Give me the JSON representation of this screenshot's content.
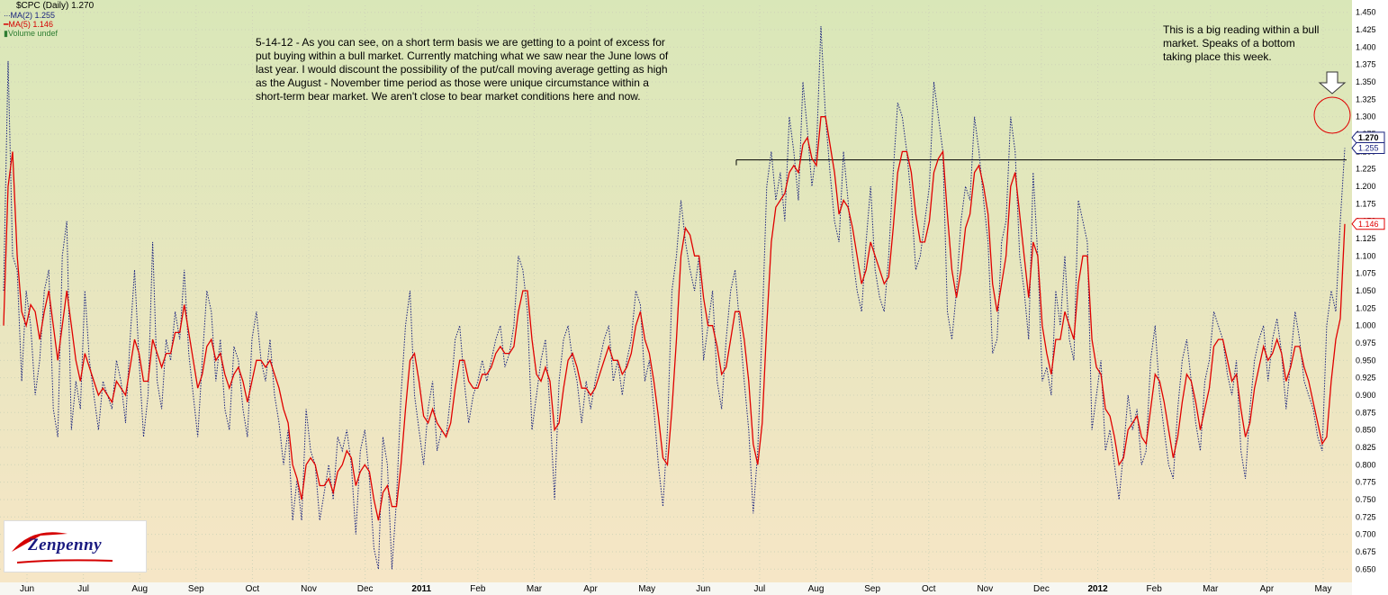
{
  "legend": {
    "title": "$CPC (Daily) 1.270",
    "ma2": "MA(2) 1.255",
    "ma5": "MA(5) 1.146",
    "volume": "Volume undef"
  },
  "annotations": {
    "left": "5-14-12 - As you can see, on a short term basis we are getting to a point of excess for put buying within a bull market. Currently matching what we saw near the June lows of last year. I would discount the possibility of the put/call moving average getting as high as the August - November time period as those were unique circumstance within a short-term bear market. We aren't close to bear market conditions here and now.",
    "right": "This is a big reading within a bull market. Speaks of a bottom taking place this week."
  },
  "logo": {
    "text": "Zenpenny"
  },
  "colors": {
    "ma2": "#1a237e",
    "ma5": "#e00000",
    "bg_top": "#d9e7b8",
    "bg_bottom": "#f5e6c3",
    "grid": "#cfd3b8",
    "last_value_box": "#1a237e"
  },
  "chart_data": {
    "type": "line",
    "title": "$CPC (Daily) 1.270",
    "ylim": [
      0.64,
      1.46
    ],
    "y_ticks": [
      "0.650",
      "0.675",
      "0.700",
      "0.725",
      "0.750",
      "0.775",
      "0.800",
      "0.825",
      "0.850",
      "0.875",
      "0.900",
      "0.925",
      "0.950",
      "0.975",
      "1.000",
      "1.025",
      "1.050",
      "1.075",
      "1.100",
      "1.125",
      "1.150",
      "1.175",
      "1.200",
      "1.225",
      "1.250",
      "1.275",
      "1.300",
      "1.325",
      "1.350",
      "1.375",
      "1.400",
      "1.425",
      "1.450"
    ],
    "x_labels": [
      "Jun",
      "Jul",
      "Aug",
      "Sep",
      "Oct",
      "Nov",
      "Dec",
      "2011",
      "Feb",
      "Mar",
      "Apr",
      "May",
      "Jun",
      "Jul",
      "Aug",
      "Sep",
      "Oct",
      "Nov",
      "Dec",
      "2012",
      "Feb",
      "Mar",
      "Apr",
      "May"
    ],
    "x_label_bold": [
      "2011",
      "2012"
    ],
    "last_values": {
      "close": "1.270",
      "ma2": "1.255",
      "ma5": "1.146"
    },
    "horizontal_line_level": 1.238,
    "grid": true,
    "legend_position": "top-left",
    "series": [
      {
        "name": "MA(2)",
        "style": "dotted",
        "values": [
          1.05,
          1.38,
          1.1,
          1.08,
          0.92,
          1.05,
          1.0,
          0.9,
          0.95,
          1.05,
          1.08,
          0.88,
          0.84,
          1.1,
          1.15,
          0.85,
          0.92,
          0.88,
          1.05,
          0.95,
          0.9,
          0.85,
          0.92,
          0.9,
          0.88,
          0.95,
          0.92,
          0.86,
          0.98,
          1.08,
          0.95,
          0.84,
          0.9,
          1.12,
          0.92,
          0.88,
          0.98,
          0.95,
          1.02,
          0.98,
          1.08,
          0.96,
          0.9,
          0.84,
          0.95,
          1.05,
          1.02,
          0.92,
          0.98,
          0.88,
          0.85,
          0.97,
          0.95,
          0.88,
          0.84,
          0.98,
          1.02,
          0.95,
          0.92,
          0.98,
          0.9,
          0.86,
          0.8,
          0.85,
          0.72,
          0.78,
          0.72,
          0.88,
          0.82,
          0.8,
          0.72,
          0.76,
          0.8,
          0.75,
          0.84,
          0.82,
          0.85,
          0.8,
          0.7,
          0.82,
          0.85,
          0.78,
          0.68,
          0.65,
          0.84,
          0.8,
          0.65,
          0.75,
          0.9,
          1.0,
          1.05,
          0.9,
          0.85,
          0.8,
          0.88,
          0.92,
          0.82,
          0.85,
          0.84,
          0.9,
          0.98,
          1.0,
          0.92,
          0.86,
          0.9,
          0.92,
          0.95,
          0.92,
          0.95,
          0.98,
          1.0,
          0.94,
          0.96,
          1.0,
          1.1,
          1.08,
          1.02,
          0.85,
          0.9,
          0.95,
          0.98,
          0.88,
          0.75,
          0.92,
          0.98,
          1.0,
          0.95,
          0.92,
          0.86,
          0.92,
          0.88,
          0.92,
          0.95,
          0.98,
          1.0,
          0.92,
          0.95,
          0.9,
          0.95,
          0.98,
          1.05,
          1.03,
          0.92,
          0.95,
          0.88,
          0.8,
          0.74,
          0.85,
          1.05,
          1.1,
          1.18,
          1.12,
          1.08,
          1.05,
          1.1,
          0.95,
          1.0,
          1.05,
          0.92,
          0.88,
          0.98,
          1.05,
          1.08,
          1.0,
          0.92,
          0.85,
          0.73,
          0.82,
          1.0,
          1.2,
          1.25,
          1.18,
          1.22,
          1.15,
          1.3,
          1.25,
          1.18,
          1.35,
          1.28,
          1.2,
          1.25,
          1.43,
          1.3,
          1.22,
          1.15,
          1.12,
          1.25,
          1.18,
          1.1,
          1.05,
          1.02,
          1.12,
          1.2,
          1.08,
          1.04,
          1.02,
          1.1,
          1.22,
          1.32,
          1.3,
          1.25,
          1.18,
          1.08,
          1.1,
          1.15,
          1.2,
          1.35,
          1.3,
          1.25,
          1.02,
          0.98,
          1.05,
          1.15,
          1.2,
          1.18,
          1.3,
          1.25,
          1.18,
          1.12,
          0.96,
          0.98,
          1.12,
          1.15,
          1.3,
          1.25,
          1.1,
          1.05,
          0.98,
          1.22,
          1.1,
          0.92,
          0.94,
          0.9,
          1.05,
          1.0,
          1.1,
          0.98,
          0.95,
          1.18,
          1.15,
          1.12,
          0.85,
          0.9,
          0.95,
          0.82,
          0.85,
          0.8,
          0.75,
          0.82,
          0.9,
          0.85,
          0.88,
          0.8,
          0.82,
          0.95,
          1.0,
          0.9,
          0.85,
          0.8,
          0.78,
          0.88,
          0.95,
          0.98,
          0.92,
          0.86,
          0.82,
          0.92,
          0.95,
          1.02,
          1.0,
          0.98,
          0.93,
          0.9,
          0.95,
          0.82,
          0.78,
          0.88,
          0.95,
          0.98,
          1.0,
          0.92,
          0.98,
          1.01,
          0.96,
          0.88,
          0.95,
          1.02,
          0.98,
          0.92,
          0.9,
          0.88,
          0.84,
          0.82,
          1.0,
          1.05,
          1.02,
          1.15,
          1.255
        ]
      },
      {
        "name": "MA(5)",
        "style": "solid",
        "values": [
          1.0,
          1.2,
          1.25,
          1.1,
          1.02,
          1.0,
          1.03,
          1.02,
          0.98,
          1.02,
          1.05,
          1.0,
          0.95,
          1.0,
          1.05,
          1.0,
          0.95,
          0.92,
          0.96,
          0.94,
          0.92,
          0.9,
          0.91,
          0.9,
          0.89,
          0.92,
          0.91,
          0.9,
          0.94,
          0.98,
          0.96,
          0.92,
          0.92,
          0.98,
          0.96,
          0.94,
          0.96,
          0.96,
          0.99,
          0.99,
          1.03,
          0.99,
          0.95,
          0.91,
          0.93,
          0.97,
          0.98,
          0.95,
          0.96,
          0.93,
          0.91,
          0.93,
          0.94,
          0.92,
          0.89,
          0.92,
          0.95,
          0.95,
          0.94,
          0.95,
          0.93,
          0.91,
          0.88,
          0.86,
          0.8,
          0.78,
          0.75,
          0.8,
          0.81,
          0.8,
          0.77,
          0.77,
          0.78,
          0.76,
          0.79,
          0.8,
          0.82,
          0.81,
          0.77,
          0.79,
          0.8,
          0.79,
          0.75,
          0.72,
          0.76,
          0.77,
          0.74,
          0.74,
          0.8,
          0.88,
          0.95,
          0.96,
          0.92,
          0.87,
          0.86,
          0.88,
          0.86,
          0.85,
          0.84,
          0.86,
          0.91,
          0.95,
          0.95,
          0.92,
          0.91,
          0.91,
          0.93,
          0.93,
          0.94,
          0.96,
          0.97,
          0.96,
          0.96,
          0.97,
          1.02,
          1.05,
          1.05,
          0.98,
          0.93,
          0.92,
          0.94,
          0.92,
          0.85,
          0.86,
          0.91,
          0.95,
          0.96,
          0.94,
          0.91,
          0.91,
          0.9,
          0.91,
          0.93,
          0.95,
          0.97,
          0.95,
          0.95,
          0.93,
          0.94,
          0.96,
          1.0,
          1.02,
          0.98,
          0.96,
          0.92,
          0.87,
          0.81,
          0.8,
          0.88,
          0.98,
          1.1,
          1.14,
          1.13,
          1.1,
          1.1,
          1.04,
          1.0,
          1.0,
          0.97,
          0.93,
          0.94,
          0.98,
          1.02,
          1.02,
          0.98,
          0.92,
          0.83,
          0.8,
          0.86,
          1.0,
          1.12,
          1.17,
          1.18,
          1.19,
          1.22,
          1.23,
          1.22,
          1.26,
          1.27,
          1.24,
          1.23,
          1.3,
          1.3,
          1.26,
          1.22,
          1.16,
          1.18,
          1.17,
          1.14,
          1.1,
          1.06,
          1.08,
          1.12,
          1.1,
          1.08,
          1.06,
          1.07,
          1.14,
          1.22,
          1.25,
          1.25,
          1.22,
          1.16,
          1.12,
          1.12,
          1.15,
          1.22,
          1.24,
          1.25,
          1.16,
          1.08,
          1.04,
          1.08,
          1.14,
          1.16,
          1.22,
          1.23,
          1.2,
          1.16,
          1.06,
          1.02,
          1.06,
          1.1,
          1.2,
          1.22,
          1.16,
          1.1,
          1.04,
          1.12,
          1.1,
          1.0,
          0.96,
          0.93,
          0.98,
          0.98,
          1.02,
          1.0,
          0.98,
          1.06,
          1.1,
          1.1,
          0.98,
          0.94,
          0.93,
          0.88,
          0.87,
          0.84,
          0.8,
          0.81,
          0.85,
          0.86,
          0.87,
          0.84,
          0.83,
          0.88,
          0.93,
          0.92,
          0.89,
          0.85,
          0.81,
          0.84,
          0.89,
          0.93,
          0.92,
          0.89,
          0.85,
          0.88,
          0.91,
          0.97,
          0.98,
          0.98,
          0.95,
          0.92,
          0.93,
          0.88,
          0.84,
          0.86,
          0.91,
          0.94,
          0.97,
          0.95,
          0.96,
          0.98,
          0.96,
          0.92,
          0.94,
          0.97,
          0.97,
          0.94,
          0.92,
          0.89,
          0.86,
          0.83,
          0.84,
          0.92,
          0.98,
          1.01,
          1.146
        ]
      }
    ]
  }
}
